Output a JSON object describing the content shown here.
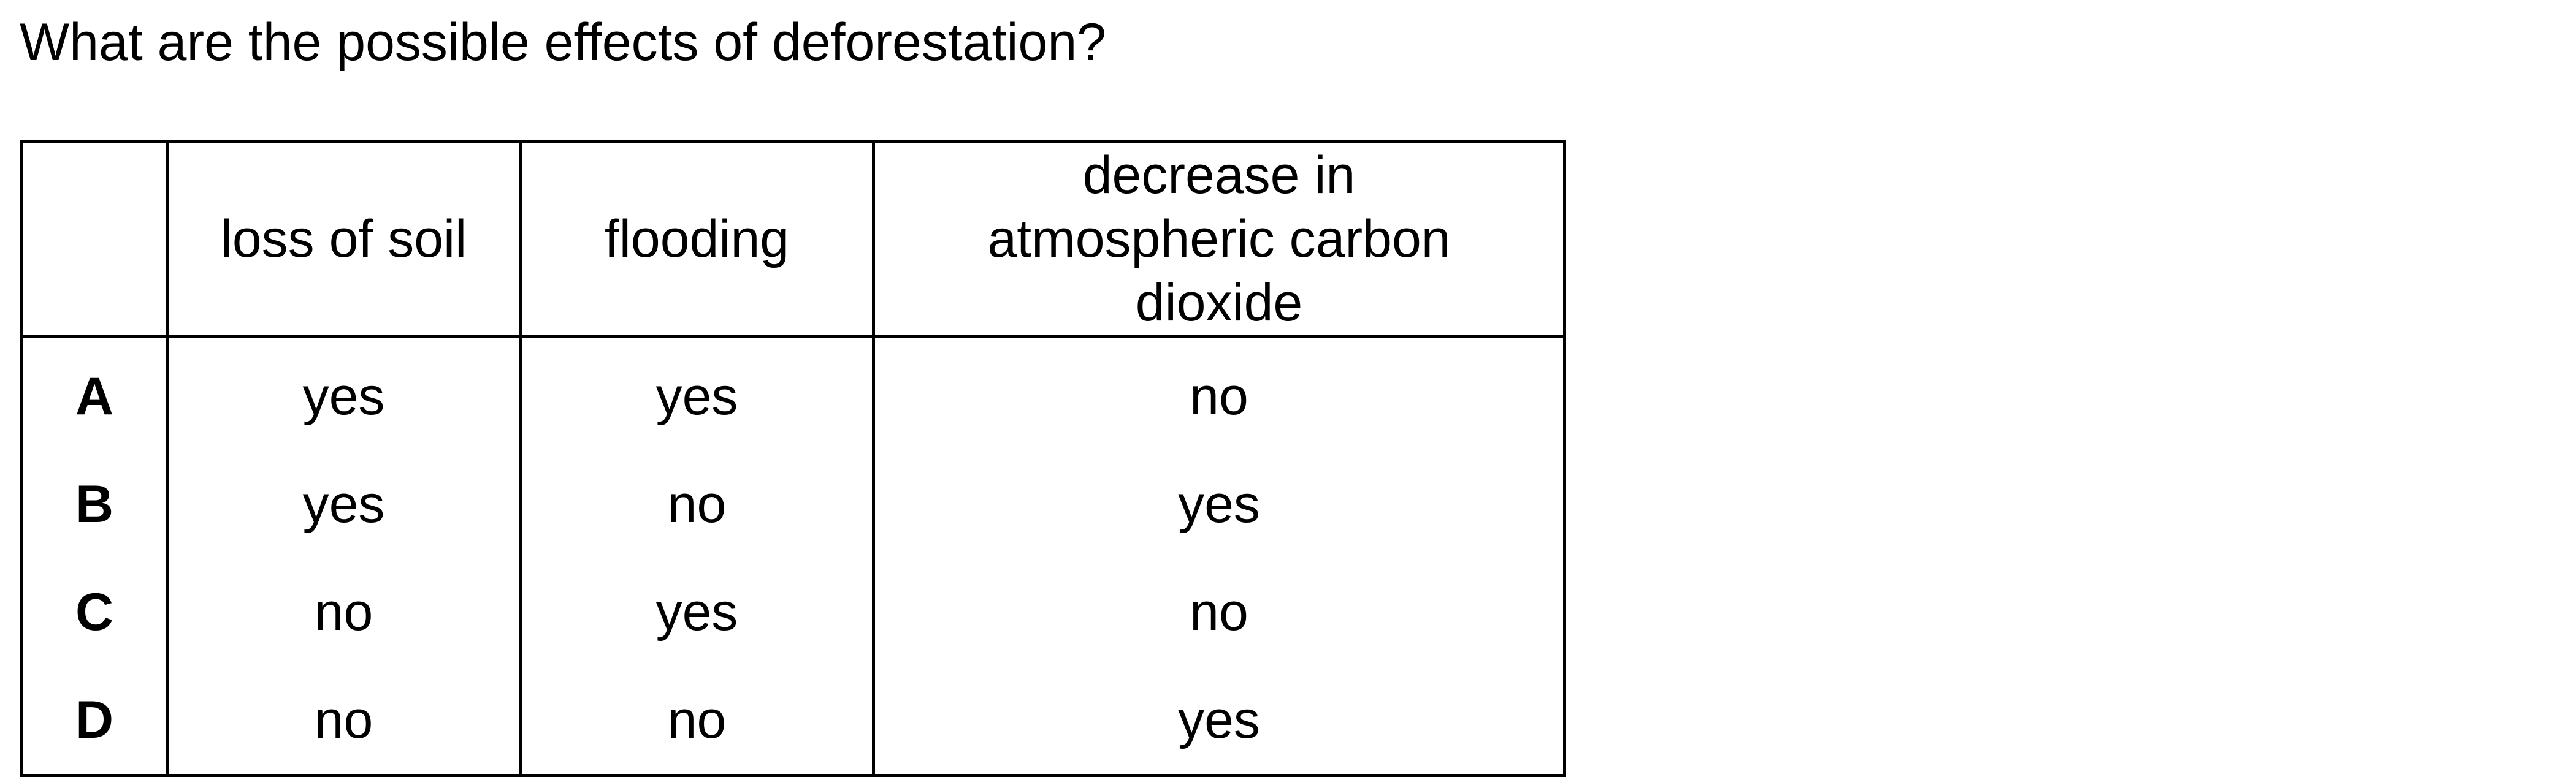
{
  "question": "What are the possible effects of deforestation?",
  "table": {
    "headers": [
      "",
      "loss of soil",
      "flooding",
      "decrease in atmospheric carbon dioxide"
    ],
    "rows": [
      {
        "letter": "A",
        "cells": [
          "yes",
          "yes",
          "no"
        ]
      },
      {
        "letter": "B",
        "cells": [
          "yes",
          "no",
          "yes"
        ]
      },
      {
        "letter": "C",
        "cells": [
          "no",
          "yes",
          "no"
        ]
      },
      {
        "letter": "D",
        "cells": [
          "no",
          "no",
          "yes"
        ]
      }
    ]
  }
}
